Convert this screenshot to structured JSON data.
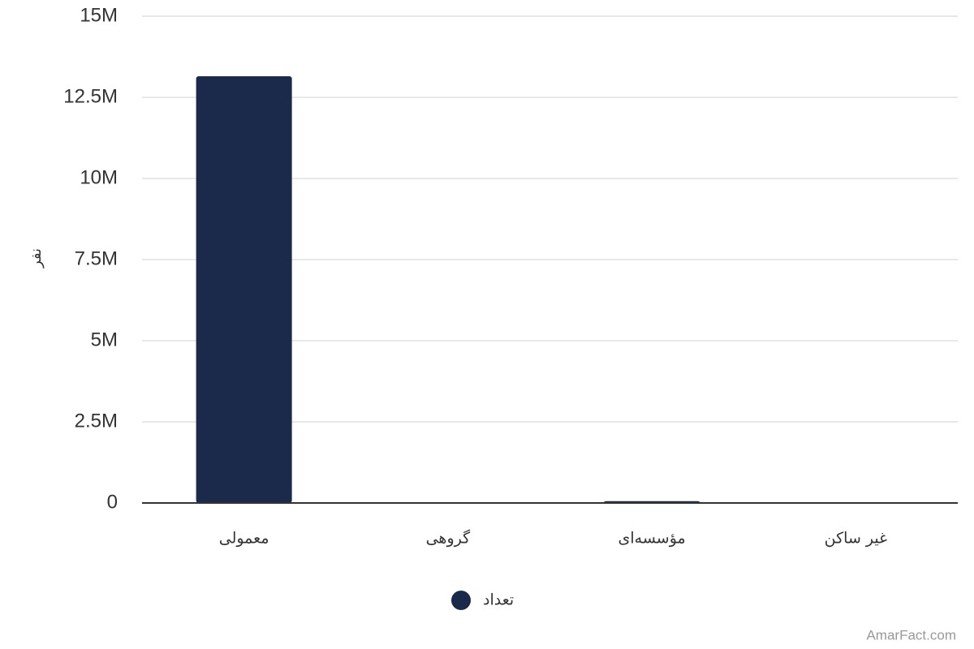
{
  "chart_data": {
    "type": "bar",
    "y_label": "نفر",
    "categories": [
      "معمولی",
      "گروهی",
      "مؤسسه‌ای",
      "غیر ساکن"
    ],
    "series": [
      {
        "name": "تعداد",
        "color": "#1b2a4a",
        "values": [
          13150000,
          5000,
          55000,
          2000
        ]
      }
    ],
    "ylim": [
      0,
      15000000
    ],
    "yticks": [
      0,
      {
        "value": 2500000,
        "label": "2.5M"
      },
      {
        "value": 5000000,
        "label": "5M"
      },
      {
        "value": 7500000,
        "label": "7.5M"
      },
      {
        "value": 10000000,
        "label": "10M"
      },
      {
        "value": 12500000,
        "label": "12.5M"
      },
      {
        "value": 15000000,
        "label": "15M"
      }
    ],
    "grid": true,
    "legend": "bottom",
    "watermark": "AmarFact.com"
  }
}
